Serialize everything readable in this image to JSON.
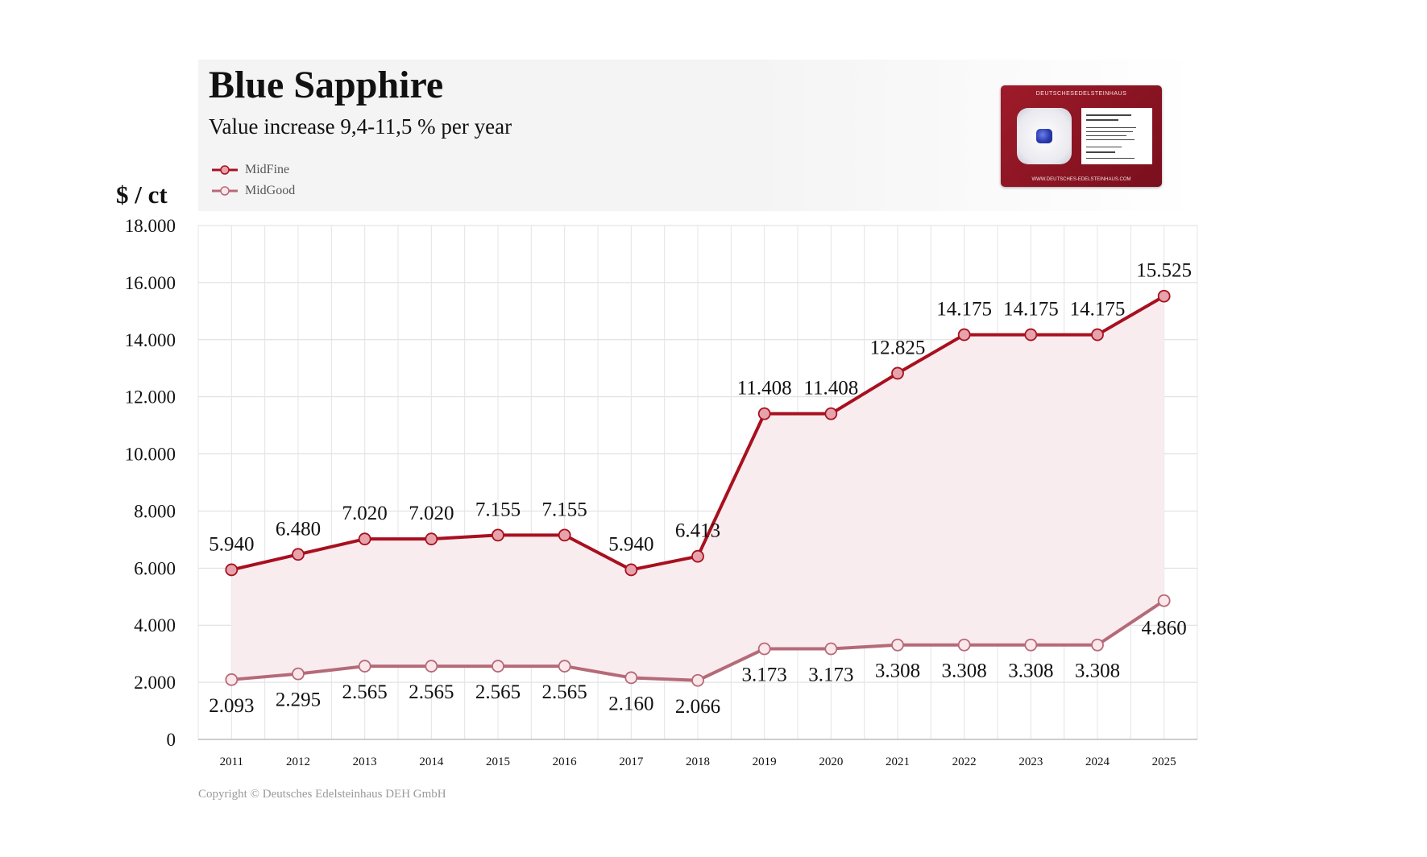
{
  "header": {
    "title": "Blue Sapphire",
    "subtitle": "Value increase 9,4-11,5 % per year"
  },
  "legend": [
    {
      "label": "MidFine",
      "color": "#a8101f"
    },
    {
      "label": "MidGood",
      "color": "#b56a78"
    }
  ],
  "y_unit": "$ / ct",
  "copyright": "Copyright © Deutsches Edelsteinhaus DEH GmbH",
  "product_card": {
    "brand": "DEUTSCHESEDELSTEINHAUS",
    "url": "WWW.DEUTSCHES-EDELSTEINHAUS.COM",
    "gem_color": "#2a3bb0"
  },
  "chart_data": {
    "type": "line",
    "title": "Blue Sapphire",
    "subtitle": "Value increase 9,4-11,5 % per year",
    "xlabel": "",
    "ylabel": "$ / ct",
    "ylim": [
      0,
      18000
    ],
    "yticks": [
      "0",
      "2.000",
      "4.000",
      "6.000",
      "8.000",
      "10.000",
      "12.000",
      "14.000",
      "16.000",
      "18.000"
    ],
    "yticks_values": [
      0,
      2000,
      4000,
      6000,
      8000,
      10000,
      12000,
      14000,
      16000,
      18000
    ],
    "grid": true,
    "legend_position": "top-left",
    "x": [
      "2011",
      "2012",
      "2013",
      "2014",
      "2015",
      "2016",
      "2017",
      "2018",
      "2019",
      "2020",
      "2021",
      "2022",
      "2023",
      "2024",
      "2025"
    ],
    "series": [
      {
        "name": "MidFine",
        "color": "#a8101f",
        "values": [
          5940,
          6480,
          7020,
          7020,
          7155,
          7155,
          5940,
          6413,
          11408,
          11408,
          12825,
          14175,
          14175,
          14175,
          15525
        ],
        "labels": [
          "5.940",
          "6.480",
          "7.020",
          "7.020",
          "7.155",
          "7.155",
          "5.940",
          "6.413",
          "11.408",
          "11.408",
          "12.825",
          "14.175",
          "14.175",
          "14.175",
          "15.525"
        ]
      },
      {
        "name": "MidGood",
        "color": "#b56a78",
        "values": [
          2093,
          2295,
          2565,
          2565,
          2565,
          2565,
          2160,
          2066,
          3173,
          3173,
          3308,
          3308,
          3308,
          3308,
          4860
        ],
        "labels": [
          "2.093",
          "2.295",
          "2.565",
          "2.565",
          "2.565",
          "2.565",
          "2.160",
          "2.066",
          "3.173",
          "3.173",
          "3.308",
          "3.308",
          "3.308",
          "3.308",
          "4.860"
        ]
      }
    ],
    "band_fill": "#f9ecee"
  }
}
